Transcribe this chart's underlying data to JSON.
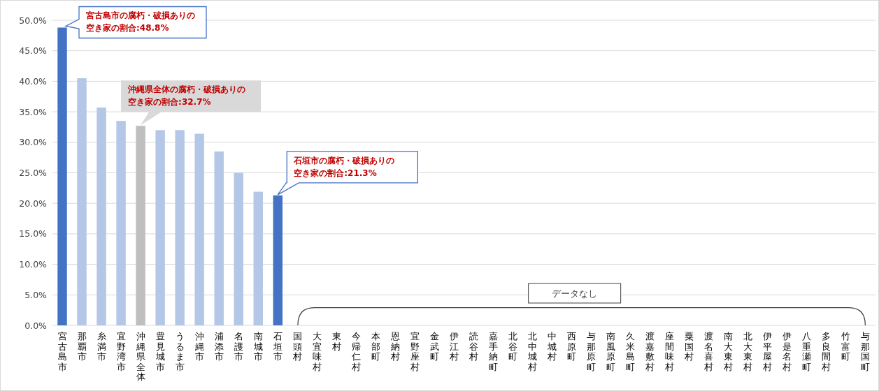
{
  "chart_data": {
    "type": "bar",
    "categories": [
      "宮古島市",
      "那覇市",
      "糸満市",
      "宜野湾市",
      "沖縄県全体",
      "豊見城市",
      "うるま市",
      "沖縄市",
      "浦添市",
      "名護市",
      "南城市",
      "石垣市",
      "国頭村",
      "大宜味村",
      "東村",
      "今帰仁村",
      "本部町",
      "恩納村",
      "宜野座村",
      "金武町",
      "伊江村",
      "読谷村",
      "嘉手納町",
      "北谷町",
      "北中城村",
      "中城村",
      "西原町",
      "与那原町",
      "南風原町",
      "久米島町",
      "渡嘉敷村",
      "座間味村",
      "粟国村",
      "渡名喜村",
      "南大東村",
      "北大東村",
      "伊平屋村",
      "伊是名村",
      "八重瀬町",
      "多良間村",
      "竹富町",
      "与那国町"
    ],
    "values": [
      48.8,
      40.5,
      35.7,
      33.5,
      32.7,
      32.0,
      32.0,
      31.4,
      28.5,
      25.0,
      21.9,
      21.3,
      null,
      null,
      null,
      null,
      null,
      null,
      null,
      null,
      null,
      null,
      null,
      null,
      null,
      null,
      null,
      null,
      null,
      null,
      null,
      null,
      null,
      null,
      null,
      null,
      null,
      null,
      null,
      null,
      null,
      null
    ],
    "colors": [
      "#4472c4",
      "#b4c7e7",
      "#b4c7e7",
      "#b4c7e7",
      "#bfbfbf",
      "#b4c7e7",
      "#b4c7e7",
      "#b4c7e7",
      "#b4c7e7",
      "#b4c7e7",
      "#b4c7e7",
      "#4472c4",
      null,
      null,
      null,
      null,
      null,
      null,
      null,
      null,
      null,
      null,
      null,
      null,
      null,
      null,
      null,
      null,
      null,
      null,
      null,
      null,
      null,
      null,
      null,
      null,
      null,
      null,
      null,
      null,
      null,
      null
    ],
    "ylim": [
      0,
      50
    ],
    "yticks": [
      {
        "value": 0,
        "label": "0.0%"
      },
      {
        "value": 5,
        "label": "5.0%"
      },
      {
        "value": 10,
        "label": "10.0%"
      },
      {
        "value": 15,
        "label": "15.0%"
      },
      {
        "value": 20,
        "label": "20.0%"
      },
      {
        "value": 25,
        "label": "25.0%"
      },
      {
        "value": 30,
        "label": "30.0%"
      },
      {
        "value": 35,
        "label": "35.0%"
      },
      {
        "value": 40,
        "label": "40.0%"
      },
      {
        "value": 45,
        "label": "45.0%"
      },
      {
        "value": 50,
        "label": "50.0%"
      }
    ],
    "grid": "y",
    "annotations": [
      {
        "text": "宮古島市の腐朽・破損ありの空き家の割合:48.8%",
        "x": "宮古島市",
        "y": 48.8
      },
      {
        "text": "沖縄県全体の腐朽・破損ありの空き家の割合:32.7%",
        "x": "沖縄県全体",
        "y": 32.7
      },
      {
        "text": "石垣市の腐朽・破損ありの空き家の割合:21.3%",
        "x": "石垣市",
        "y": 21.3
      },
      "データなし"
    ]
  }
}
